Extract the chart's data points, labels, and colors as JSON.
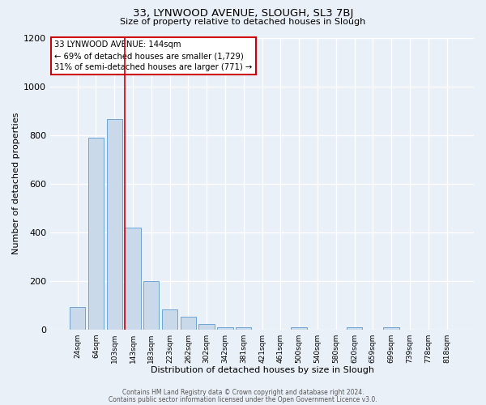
{
  "title": "33, LYNWOOD AVENUE, SLOUGH, SL3 7BJ",
  "subtitle": "Size of property relative to detached houses in Slough",
  "xlabel": "Distribution of detached houses by size in Slough",
  "ylabel": "Number of detached properties",
  "footer_line1": "Contains HM Land Registry data © Crown copyright and database right 2024.",
  "footer_line2": "Contains public sector information licensed under the Open Government Licence v3.0.",
  "bar_labels": [
    "24sqm",
    "64sqm",
    "103sqm",
    "143sqm",
    "183sqm",
    "223sqm",
    "262sqm",
    "302sqm",
    "342sqm",
    "381sqm",
    "421sqm",
    "461sqm",
    "500sqm",
    "540sqm",
    "580sqm",
    "620sqm",
    "659sqm",
    "699sqm",
    "739sqm",
    "778sqm",
    "818sqm"
  ],
  "bar_values": [
    93,
    790,
    865,
    420,
    200,
    85,
    55,
    22,
    10,
    10,
    0,
    0,
    10,
    0,
    0,
    10,
    0,
    10,
    0,
    0,
    0
  ],
  "bar_color": "#c9d9ea",
  "bar_edge_color": "#5b9bd5",
  "bg_color": "#eaf0f7",
  "grid_color": "#ffffff",
  "property_line_color": "#cc0000",
  "annotation_title": "33 LYNWOOD AVENUE: 144sqm",
  "annotation_line1": "← 69% of detached houses are smaller (1,729)",
  "annotation_line2": "31% of semi-detached houses are larger (771) →",
  "annotation_box_color": "#cc0000",
  "ylim": [
    0,
    1200
  ],
  "yticks": [
    0,
    200,
    400,
    600,
    800,
    1000,
    1200
  ]
}
